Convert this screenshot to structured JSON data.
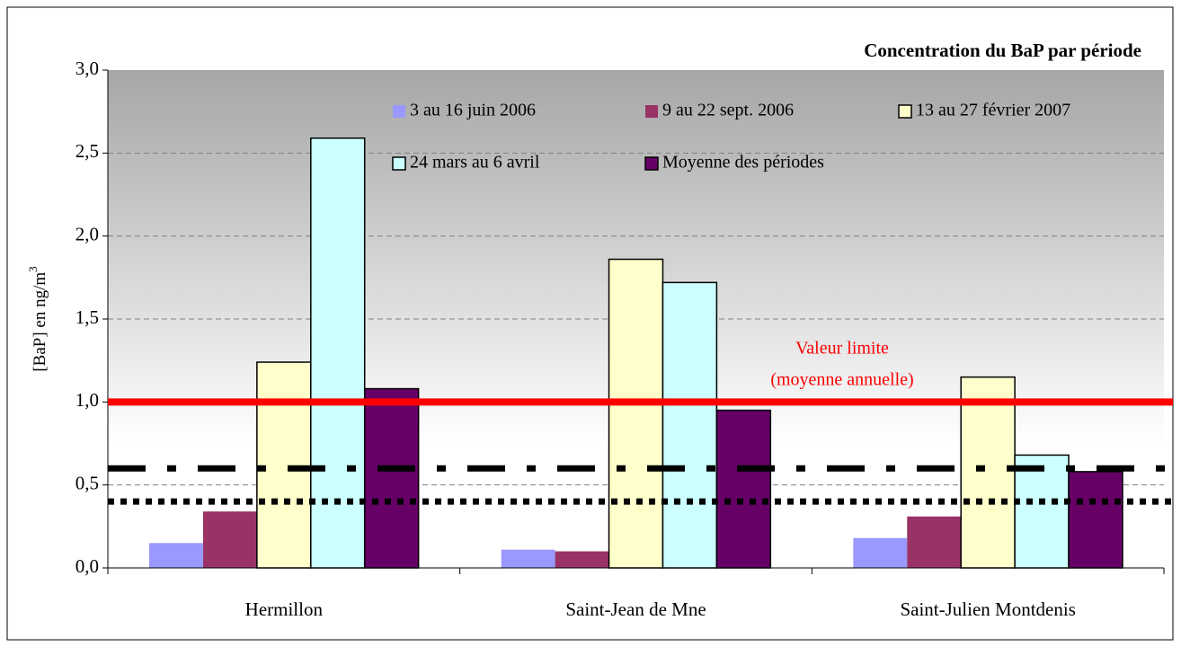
{
  "chart_data": {
    "type": "bar",
    "title": "Concentration du BaP par période",
    "y_label": "[BaP] en ng/m",
    "y_label_sup": "3",
    "categories": [
      "Hermillon",
      "Saint-Jean de Mne",
      "Saint-Julien Montdenis"
    ],
    "series": [
      {
        "name": "3 au 16 juin 2006",
        "color": "#9999ff",
        "outlined": false,
        "values": [
          0.15,
          0.11,
          0.18
        ]
      },
      {
        "name": "9 au 22 sept. 2006",
        "color": "#993366",
        "outlined": false,
        "values": [
          0.34,
          0.1,
          0.31
        ]
      },
      {
        "name": "13 au 27 février 2007",
        "color": "#ffffcc",
        "outlined": true,
        "values": [
          1.24,
          1.86,
          1.15
        ]
      },
      {
        "name": "24 mars au 6 avril",
        "color": "#ccffff",
        "outlined": true,
        "values": [
          2.59,
          1.72,
          0.68
        ]
      },
      {
        "name": "Moyenne des périodes",
        "color": "#660066",
        "outlined": true,
        "values": [
          1.08,
          0.95,
          0.58
        ]
      }
    ],
    "ylim": [
      0,
      3
    ],
    "yticks": [
      {
        "value": 0,
        "label": "0,0"
      },
      {
        "value": 0.5,
        "label": "0,5"
      },
      {
        "value": 1,
        "label": "1,0"
      },
      {
        "value": 1.5,
        "label": "1,5"
      },
      {
        "value": 2,
        "label": "2,0"
      },
      {
        "value": 2.5,
        "label": "2,5"
      },
      {
        "value": 3,
        "label": "3,0"
      }
    ],
    "grid": true,
    "reference_lines": [
      {
        "value": 1.0,
        "color": "#ff0000",
        "style": "solid"
      },
      {
        "value": 0.6,
        "color": "#000000",
        "style": "dashdot"
      },
      {
        "value": 0.4,
        "color": "#000000",
        "style": "dotted"
      }
    ],
    "annotation": [
      "Valeur limite",
      "(moyenne annuelle)"
    ],
    "annotation_color": "#ff0000"
  }
}
